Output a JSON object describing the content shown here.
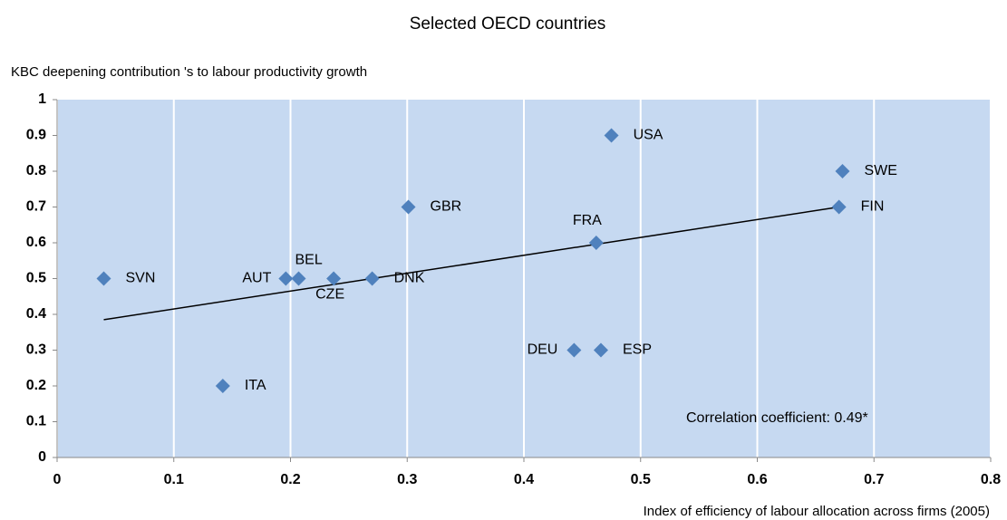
{
  "chart_data": {
    "type": "scatter",
    "title": "Selected OECD countries",
    "y_label": "KBC deepening contribution 's to labour productivity growth",
    "x_label": "Index of efficiency of labour allocation across firms (2005)",
    "annotation": "Correlation coefficient: 0.49*",
    "labels": [
      "SVN",
      "AUT",
      "BEL",
      "CZE",
      "DNK",
      "GBR",
      "ITA",
      "DEU",
      "ESP",
      "FRA",
      "USA",
      "FIN",
      "SWE"
    ],
    "x": [
      0.04,
      0.196,
      0.207,
      0.237,
      0.27,
      0.301,
      0.142,
      0.443,
      0.466,
      0.462,
      0.475,
      0.67,
      0.673
    ],
    "y": [
      0.5,
      0.5,
      0.5,
      0.5,
      0.5,
      0.7,
      0.2,
      0.3,
      0.3,
      0.6,
      0.9,
      0.7,
      0.8
    ],
    "color": "#4f81bd",
    "trendline": {
      "x": [
        0.04,
        0.67
      ],
      "y": [
        0.385,
        0.7
      ],
      "color": "#000000"
    },
    "xlim": [
      0,
      0.8
    ],
    "xticks": [
      0,
      0.1,
      0.2,
      0.3,
      0.4,
      0.5,
      0.6,
      0.7,
      0.8
    ],
    "ylim": [
      0,
      1
    ],
    "yticks": [
      0,
      0.1,
      0.2,
      0.3,
      0.4,
      0.5,
      0.6,
      0.7,
      0.8,
      0.9,
      1
    ],
    "grid": "x",
    "background": "#c6d9f1"
  }
}
